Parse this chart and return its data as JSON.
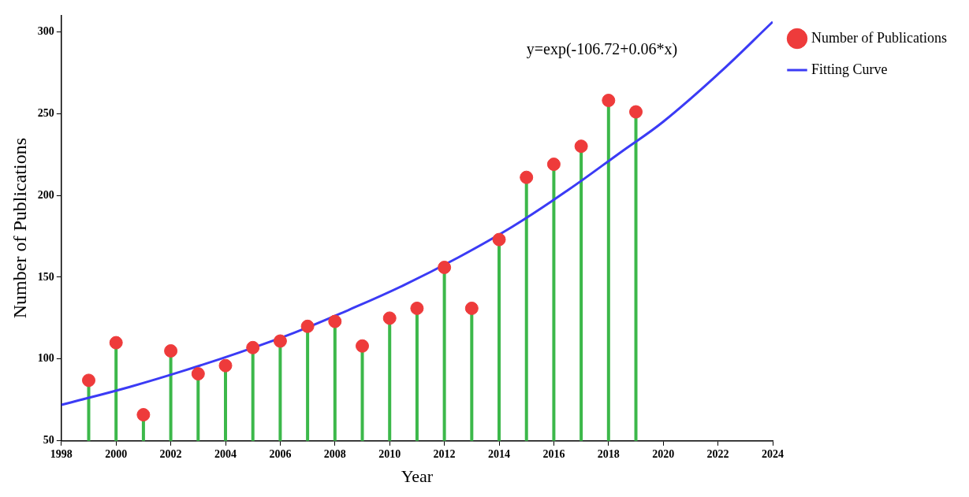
{
  "chart_data": {
    "type": "lollipop",
    "xlabel": "Year",
    "ylabel": "Number of Publications",
    "xlim": [
      1998,
      2024
    ],
    "xticks": [
      1998,
      2000,
      2002,
      2004,
      2006,
      2008,
      2010,
      2012,
      2014,
      2016,
      2018,
      2020,
      2022,
      2024
    ],
    "ylim": [
      50,
      310
    ],
    "yticks": [
      50,
      100,
      150,
      200,
      250,
      300
    ],
    "grid": false,
    "legend": "top right",
    "annotations": [
      "y=exp(-106.72+0.06*x)"
    ],
    "series": [
      {
        "name": "Number of Publications",
        "marker": "circle",
        "color": "#ee3b3b",
        "x": [
          1999,
          2000,
          2001,
          2002,
          2003,
          2004,
          2005,
          2006,
          2007,
          2008,
          2009,
          2010,
          2011,
          2012,
          2013,
          2014,
          2015,
          2016,
          2017,
          2018,
          2019
        ],
        "values": [
          87,
          110,
          66,
          105,
          91,
          96,
          107,
          111,
          120,
          123,
          108,
          125,
          131,
          156,
          131,
          173,
          211,
          219,
          230,
          258,
          251
        ]
      },
      {
        "name": "Fitting Curve",
        "type": "line",
        "color": "#3b3bf5",
        "x": [
          1998,
          2000.5,
          2002.5,
          2004.5,
          2006.5,
          2008.5,
          2010.5,
          2012.5,
          2014.5,
          2016.5,
          2018.5,
          2020,
          2022,
          2024
        ],
        "values": [
          72,
          83,
          93,
          104,
          116,
          130,
          145,
          162,
          181,
          203,
          227,
          245,
          274,
          306
        ]
      }
    ]
  }
}
